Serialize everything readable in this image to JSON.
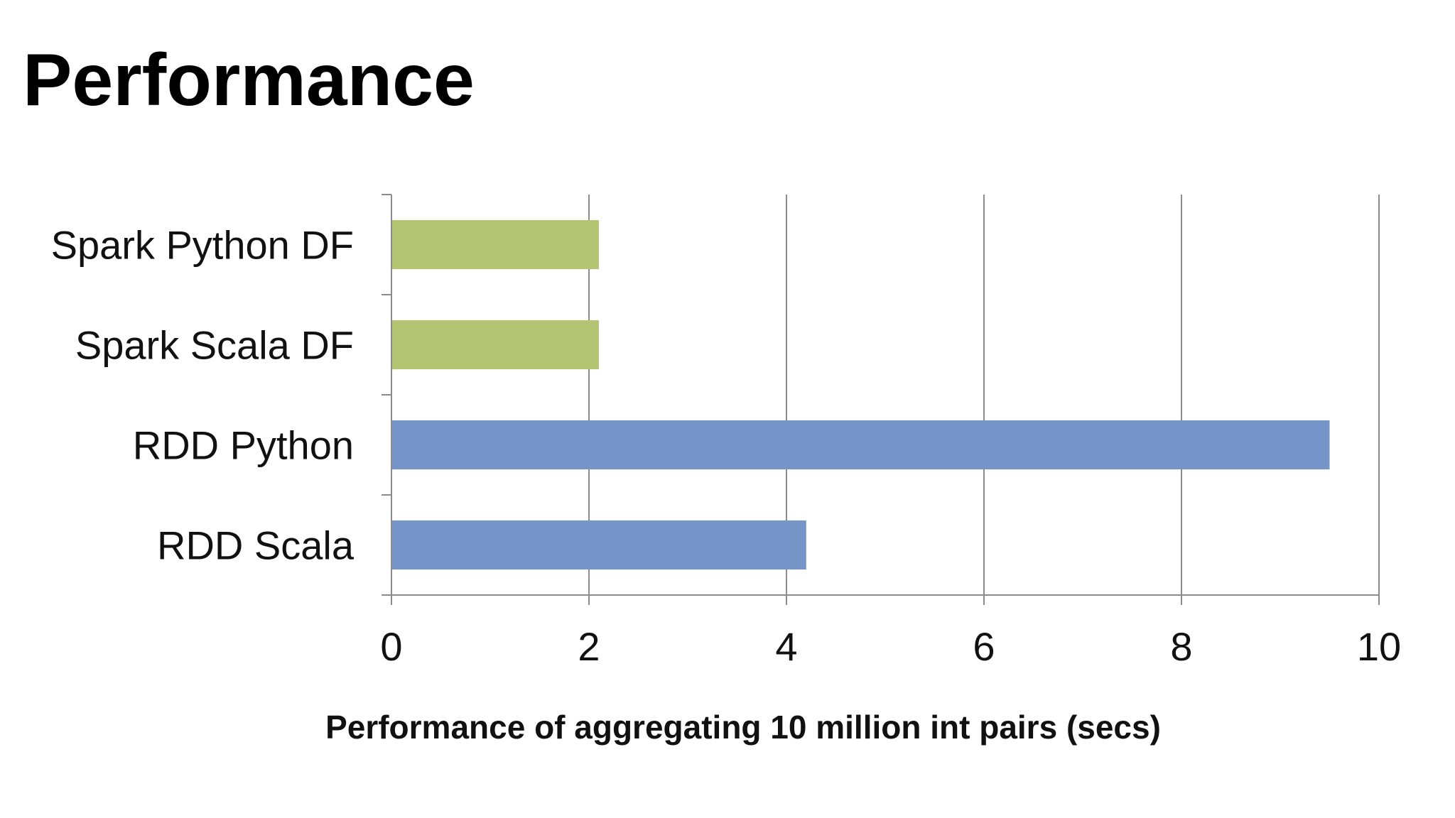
{
  "slide": {
    "title": "Performance"
  },
  "chart_data": {
    "type": "bar",
    "orientation": "horizontal",
    "categories": [
      "Spark Python DF",
      "Spark Scala DF",
      "RDD Python",
      "RDD Scala"
    ],
    "values": [
      2.1,
      2.1,
      9.5,
      4.2
    ],
    "colors": [
      "#b3c573",
      "#b3c573",
      "#7595c8",
      "#7595c8"
    ],
    "xlabel": "Performance of aggregating 10 million int pairs (secs)",
    "ylabel": "",
    "xlim": [
      0,
      10
    ],
    "xticks": [
      0,
      2,
      4,
      6,
      8,
      10
    ],
    "xtick_labels": [
      "0",
      "2",
      "4",
      "6",
      "8",
      "10"
    ],
    "grid": true,
    "legend": "none"
  }
}
